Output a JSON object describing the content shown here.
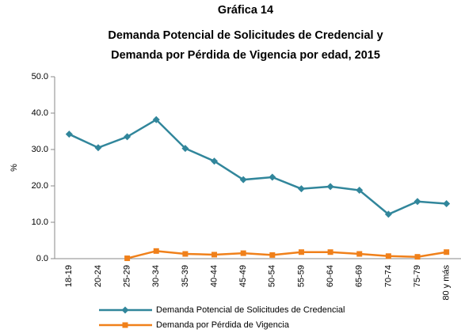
{
  "chart_data": {
    "type": "line",
    "title": [
      "Gráfica 14",
      "Demanda Potencial de Solicitudes de Credencial y",
      "Demanda por Pérdida de Vigencia por edad, 2015"
    ],
    "ylabel": "%",
    "categories": [
      "18-19",
      "20-24",
      "25-29",
      "30-34",
      "35-39",
      "40-44",
      "45-49",
      "50-54",
      "55-59",
      "60-64",
      "65-69",
      "70-74",
      "75-79",
      "80 y más"
    ],
    "series": [
      {
        "name": "Demanda Potencial de Solicitudes de Credencial",
        "color": "#31869b",
        "marker": "diamond",
        "values": [
          34.2,
          30.5,
          33.5,
          38.2,
          30.3,
          26.8,
          21.7,
          22.4,
          19.2,
          19.8,
          18.8,
          12.2,
          15.7,
          15.1
        ]
      },
      {
        "name": "Demanda por Pérdida de Vigencia",
        "color": "#f0801a",
        "marker": "square",
        "values": [
          null,
          null,
          0.1,
          2.1,
          1.3,
          1.1,
          1.5,
          1.0,
          1.8,
          1.8,
          1.3,
          0.7,
          0.5,
          1.8
        ]
      }
    ],
    "ylim": [
      0,
      50
    ],
    "yticks": [
      {
        "value": 0,
        "label": "0.0"
      },
      {
        "value": 10,
        "label": "10.0"
      },
      {
        "value": 20,
        "label": "20.0"
      },
      {
        "value": 30,
        "label": "30.0"
      },
      {
        "value": 40,
        "label": "40.0"
      },
      {
        "value": 50,
        "label": "50.0"
      }
    ],
    "grid": false,
    "legend": "bottom"
  }
}
